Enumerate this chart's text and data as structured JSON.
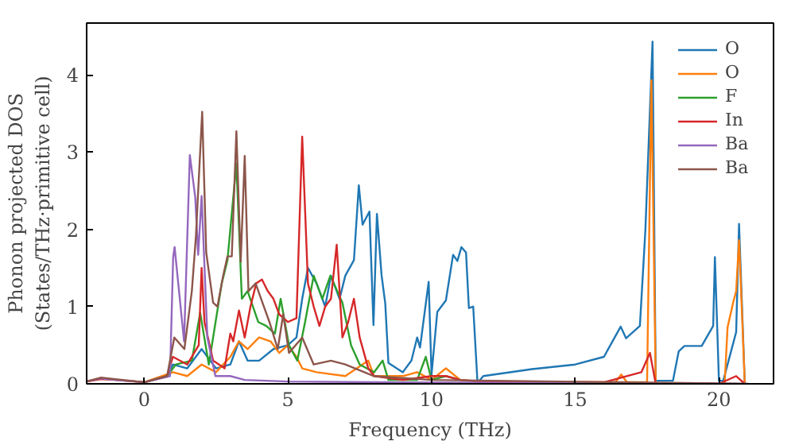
{
  "chart_data": {
    "type": "line",
    "xlabel": "Frequency (THz)",
    "ylabel": "Phonon projected DOS\n(States/THz·primitive cell)",
    "xlim": [
      -2,
      21.9
    ],
    "ylim": [
      0,
      4.67
    ],
    "xticks": [
      0,
      5,
      10,
      15,
      20
    ],
    "yticks": [
      0,
      1,
      2,
      3,
      4
    ],
    "grid": false,
    "legend": "top right",
    "marker": "none",
    "line_style": "solid",
    "series": [
      {
        "name": "O",
        "color": "#1f77b4",
        "x": [
          0,
          0.8,
          1,
          1.5,
          2,
          2.5,
          3,
          3.3,
          3.6,
          4,
          4.5,
          5,
          5.3,
          5.5,
          5.7,
          6,
          6.3,
          6.5,
          6.8,
          7,
          7.3,
          7.47,
          7.6,
          7.84,
          7.98,
          8.1,
          8.26,
          8.39,
          8.5,
          9,
          9.3,
          9.5,
          9.6,
          9.9,
          10,
          10.2,
          10.5,
          10.75,
          10.9,
          11.04,
          11.2,
          11.3,
          11.45,
          11.6,
          11.8,
          13.5,
          15,
          16,
          16.58,
          16.77,
          17.25,
          17.44,
          17.69,
          17.8,
          18.4,
          18.6,
          18.8,
          19.4,
          19.8,
          19.86,
          20,
          20.15,
          20.6,
          20.7,
          20.9
        ],
        "values": [
          0.02,
          0.1,
          0.25,
          0.2,
          0.45,
          0.2,
          0.25,
          0.55,
          0.3,
          0.3,
          0.45,
          0.5,
          0.6,
          1.1,
          1.5,
          1.3,
          1.0,
          1.4,
          1.1,
          1.4,
          1.6,
          2.57,
          2.06,
          2.23,
          0.76,
          2.2,
          1.41,
          1.04,
          0.27,
          0.15,
          0.3,
          0.6,
          0.47,
          1.32,
          0.12,
          0.93,
          1.08,
          1.67,
          1.59,
          1.77,
          1.7,
          0.98,
          1.0,
          0.01,
          0.1,
          0.19,
          0.25,
          0.35,
          0.74,
          0.59,
          0.75,
          1.98,
          4.43,
          0.04,
          0.04,
          0.42,
          0.49,
          0.49,
          0.75,
          1.64,
          0.04,
          0.04,
          0.67,
          2.07,
          0
        ]
      },
      {
        "name": "O",
        "color": "#ff7f0e",
        "x": [
          0,
          1,
          1.5,
          2,
          2.5,
          3,
          3.3,
          3.6,
          4,
          4.4,
          4.7,
          5,
          5.3,
          5.5,
          6,
          7,
          7.8,
          8,
          9,
          9.5,
          10,
          10.5,
          11,
          12,
          16.4,
          16.6,
          16.8,
          17.5,
          17.65,
          17.8,
          20.2,
          20.3,
          20.5,
          20.6,
          20.7,
          20.9
        ],
        "values": [
          0.02,
          0.15,
          0.1,
          0.25,
          0.15,
          0.35,
          0.55,
          0.45,
          0.6,
          0.55,
          0.4,
          0.5,
          0.35,
          0.2,
          0.15,
          0.1,
          0.3,
          0.1,
          0.1,
          0.15,
          0.05,
          0.2,
          0.05,
          0.02,
          0.02,
          0.12,
          0.02,
          0.02,
          3.93,
          0,
          0,
          0.73,
          1.06,
          1.2,
          1.86,
          0
        ]
      },
      {
        "name": "F",
        "color": "#2ca02c",
        "x": [
          0,
          0.8,
          1.1,
          1.66,
          1.95,
          2.25,
          2.7,
          2.9,
          3.21,
          3.4,
          3.6,
          3.97,
          4.25,
          4.55,
          4.75,
          5.04,
          5.33,
          5.6,
          5.9,
          6.2,
          6.48,
          6.6,
          6.9,
          7.2,
          7.5,
          8,
          8.3,
          8.5,
          9.5,
          9.8,
          10,
          10.5,
          11
        ],
        "values": [
          0.02,
          0.1,
          0.25,
          0.3,
          0.92,
          0.25,
          1.3,
          1.6,
          2.85,
          1.1,
          1.2,
          0.8,
          0.75,
          0.65,
          1.1,
          0.5,
          0.3,
          0.8,
          1.4,
          1.1,
          1.4,
          1.3,
          1.05,
          0.5,
          0.25,
          0.15,
          0.3,
          0.05,
          0.05,
          0.35,
          0.05,
          0.1,
          0.05
        ]
      },
      {
        "name": "In",
        "color": "#d62728",
        "x": [
          -2,
          -1.5,
          -1,
          0,
          0.8,
          1,
          1.5,
          1.9,
          2,
          2.1,
          2.4,
          2.8,
          3,
          3.1,
          3.3,
          3.5,
          3.7,
          3.9,
          4.1,
          4.3,
          4.5,
          4.7,
          5,
          5.3,
          5.5,
          5.7,
          5.9,
          6.1,
          6.3,
          6.5,
          6.7,
          6.9,
          7.1,
          7.3,
          7.5,
          7.8,
          8,
          9,
          10,
          10.5,
          11,
          12,
          16,
          17.3,
          17.6,
          17.8,
          20,
          20.6,
          20.9
        ],
        "values": [
          0.03,
          0.06,
          0.05,
          0.02,
          0.1,
          0.35,
          0.25,
          0.5,
          1.5,
          0.8,
          0.3,
          0.2,
          0.65,
          0.55,
          0.95,
          0.6,
          1.0,
          1.3,
          1.35,
          1.2,
          1.1,
          0.9,
          0.8,
          0.85,
          3.2,
          1.3,
          1.0,
          0.75,
          1.0,
          1.1,
          1.8,
          0.6,
          0.8,
          1.1,
          0.6,
          0.2,
          0.1,
          0.05,
          0.1,
          0.1,
          0.05,
          0.02,
          0.02,
          0.15,
          0.4,
          0,
          0,
          0.1,
          0
        ]
      },
      {
        "name": "Ba",
        "color": "#9467bd",
        "x": [
          -2,
          -1.5,
          -1,
          0,
          0.9,
          1.01,
          1.06,
          1.39,
          1.59,
          1.78,
          1.88,
          2.0,
          2.2,
          2.48,
          3,
          3.5,
          5,
          8,
          21
        ],
        "values": [
          0.03,
          0.07,
          0.05,
          0.02,
          0.1,
          1.64,
          1.77,
          0.55,
          2.96,
          2.41,
          1.67,
          2.43,
          0.6,
          0.1,
          0.1,
          0.05,
          0.03,
          0.02,
          0
        ]
      },
      {
        "name": "Ba",
        "color": "#8c564b",
        "x": [
          -2,
          -1.5,
          -1,
          0,
          0.8,
          1.05,
          1.4,
          1.66,
          1.8,
          2.02,
          2.16,
          2.4,
          2.55,
          2.75,
          2.9,
          3.05,
          3.21,
          3.36,
          3.5,
          3.63,
          3.88,
          4.07,
          4.36,
          4.65,
          4.84,
          5.04,
          5.5,
          5.9,
          6.5,
          7,
          8,
          10,
          21
        ],
        "values": [
          0.03,
          0.08,
          0.06,
          0.02,
          0.1,
          0.6,
          0.45,
          1.2,
          1.9,
          3.52,
          1.7,
          1.05,
          1.0,
          1.4,
          1.65,
          1.65,
          3.27,
          1.58,
          2.95,
          1.2,
          1.3,
          1.1,
          0.8,
          0.45,
          0.9,
          0.4,
          0.6,
          0.25,
          0.3,
          0.25,
          0.1,
          0.05,
          0
        ]
      }
    ]
  }
}
